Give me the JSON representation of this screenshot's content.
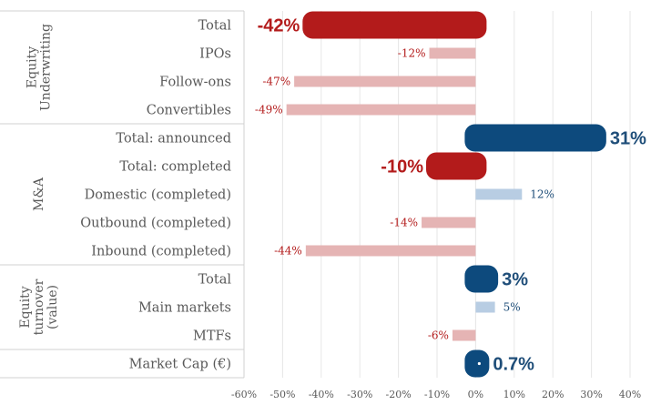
{
  "chart_data": {
    "type": "bar",
    "orientation": "horizontal",
    "xlim": [
      -60,
      40
    ],
    "x_ticks": [
      "-60%",
      "-50%",
      "-40%",
      "-30%",
      "-20%",
      "-10%",
      "0%",
      "10%",
      "20%",
      "30%",
      "40%"
    ],
    "grid": true,
    "groups": [
      {
        "name": "Equity Underwriting",
        "name_lines": [
          "Equity",
          "Underwriting"
        ]
      },
      {
        "name": "M&A",
        "name_lines": [
          "M&A"
        ]
      },
      {
        "name": "Equity turnover (value)",
        "name_lines": [
          "Equity",
          "turnover",
          "(value)"
        ]
      },
      {
        "name": "",
        "name_lines": []
      }
    ],
    "rows": [
      {
        "group": "Equity Underwriting",
        "category": "Total",
        "value": -42,
        "label": "-42%",
        "style": "highlight"
      },
      {
        "group": "Equity Underwriting",
        "category": "IPOs",
        "value": -12,
        "label": "-12%",
        "style": "normal"
      },
      {
        "group": "Equity Underwriting",
        "category": "Follow-ons",
        "value": -47,
        "label": "-47%",
        "style": "normal"
      },
      {
        "group": "Equity Underwriting",
        "category": "Convertibles",
        "value": -49,
        "label": "-49%",
        "style": "normal"
      },
      {
        "group": "M&A",
        "category": "Total: announced",
        "value": 31,
        "label": "31%",
        "style": "highlight"
      },
      {
        "group": "M&A",
        "category": "Total: completed",
        "value": -10,
        "label": "-10%",
        "style": "highlight"
      },
      {
        "group": "M&A",
        "category": "Domestic (completed)",
        "value": 12,
        "label": "12%",
        "style": "normal"
      },
      {
        "group": "M&A",
        "category": "Outbound (completed)",
        "value": -14,
        "label": "-14%",
        "style": "normal"
      },
      {
        "group": "M&A",
        "category": "Inbound (completed)",
        "value": -44,
        "label": "-44%",
        "style": "normal"
      },
      {
        "group": "Equity turnover (value)",
        "category": "Total",
        "value": 3,
        "label": "3%",
        "style": "highlight"
      },
      {
        "group": "Equity turnover (value)",
        "category": "Main markets",
        "value": 5,
        "label": "5%",
        "style": "normal"
      },
      {
        "group": "Equity turnover (value)",
        "category": "MTFs",
        "value": -6,
        "label": "-6%",
        "style": "normal"
      },
      {
        "group": "",
        "category": "Market Cap (€)",
        "value": 0.7,
        "label": "0.7%",
        "style": "highlight"
      }
    ],
    "colors": {
      "negative_highlight": "#b31b1b",
      "negative_normal": "#e5b4b4",
      "positive_highlight": "#0d4a7d",
      "positive_normal": "#b8cde3",
      "negative_label": "#b31b1b",
      "positive_label": "#1f4e79",
      "axis_text": "#595959",
      "grid": "#e6e6e6",
      "divider": "#d0d0d0"
    }
  }
}
